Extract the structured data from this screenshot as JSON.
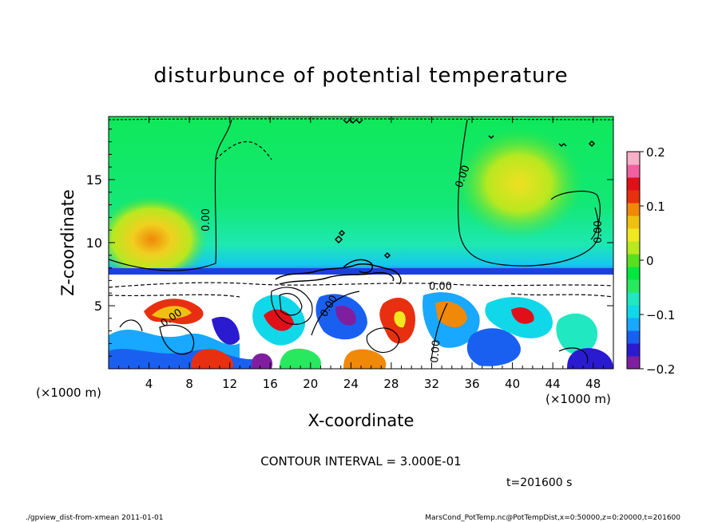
{
  "chart_data": {
    "type": "heatmap",
    "title": "disturbunce of potential temperature",
    "xlabel": "X-coordinate",
    "ylabel": "Z-coordinate",
    "x_unit": "(×1000 m)",
    "y_unit": "(×1000 m)",
    "xlim": [
      0,
      50
    ],
    "ylim": [
      0,
      20
    ],
    "x_ticks": [
      4,
      8,
      12,
      16,
      20,
      24,
      28,
      32,
      36,
      40,
      44,
      48
    ],
    "y_ticks": [
      5,
      10,
      15
    ],
    "colorbar": {
      "range": [
        -0.2,
        0.2
      ],
      "tick_values": [
        0.2,
        0.1,
        0,
        -0.1,
        -0.2
      ],
      "tick_labels": [
        "0.2",
        "0.1",
        "0",
        "−0.1",
        "−0.2"
      ],
      "colors": [
        "#7f1fa0",
        "#2b1bd0",
        "#1a60f0",
        "#18a8ff",
        "#10d8e8",
        "#20e8c0",
        "#28e860",
        "#00e840",
        "#58e020",
        "#b8e820",
        "#f0e820",
        "#f0c010",
        "#f08808",
        "#e83010",
        "#e01018",
        "#f060a0",
        "#f8b0c8"
      ]
    },
    "contour_labels": [
      "0.00",
      "0.00",
      "0.00",
      "0.00",
      "0.00",
      "0.00",
      "0.00"
    ],
    "contour_interval_text": "CONTOUR INTERVAL = 3.000E-01",
    "time_text": "t=201600  s"
  },
  "footer": {
    "left": "./gpview_dist-from-xmean  2011-01-01",
    "right": "MarsCond_PotTemp.nc@PotTempDist,x=0:50000,z=0:20000,t=201600"
  }
}
